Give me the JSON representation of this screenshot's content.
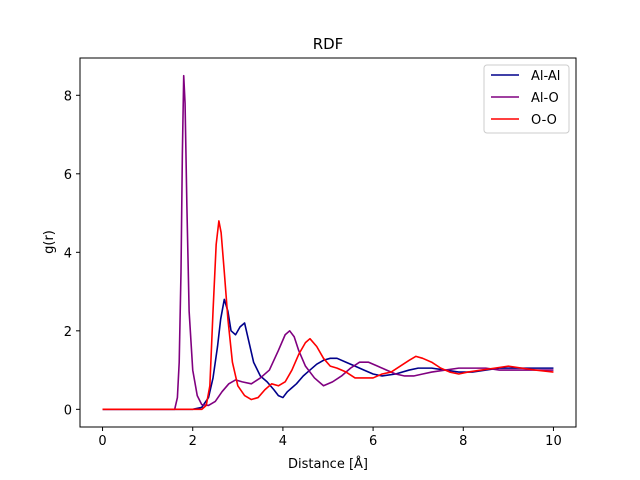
{
  "chart_data": {
    "type": "line",
    "title": "RDF",
    "xlabel": "Distance [Å]",
    "ylabel": "g(r)",
    "xlim": [
      -0.5,
      10.5
    ],
    "ylim": [
      -0.45,
      8.95
    ],
    "xticks": [
      0,
      2,
      4,
      6,
      8,
      10
    ],
    "yticks": [
      0,
      2,
      4,
      6,
      8
    ],
    "grid": false,
    "legend_position": "top-right",
    "series": [
      {
        "name": "Al-Al",
        "color": "#00008b",
        "x": [
          0,
          2.0,
          2.2,
          2.35,
          2.45,
          2.55,
          2.62,
          2.7,
          2.78,
          2.85,
          2.95,
          3.05,
          3.15,
          3.25,
          3.35,
          3.5,
          3.65,
          3.8,
          3.9,
          4.0,
          4.1,
          4.2,
          4.3,
          4.45,
          4.6,
          4.75,
          4.9,
          5.05,
          5.2,
          5.4,
          5.6,
          5.8,
          6.0,
          6.2,
          6.5,
          6.8,
          7.0,
          7.3,
          7.6,
          7.9,
          8.2,
          8.5,
          8.8,
          9.1,
          9.4,
          9.7,
          10.0
        ],
        "y": [
          0,
          0,
          0.05,
          0.3,
          0.8,
          1.6,
          2.3,
          2.8,
          2.5,
          2.0,
          1.9,
          2.1,
          2.2,
          1.7,
          1.2,
          0.85,
          0.7,
          0.5,
          0.35,
          0.3,
          0.45,
          0.55,
          0.65,
          0.85,
          1.0,
          1.15,
          1.25,
          1.3,
          1.3,
          1.2,
          1.1,
          1.0,
          0.9,
          0.85,
          0.9,
          1.0,
          1.05,
          1.05,
          1.0,
          0.95,
          0.95,
          1.0,
          1.05,
          1.05,
          1.05,
          1.05,
          1.05
        ]
      },
      {
        "name": "Al-O",
        "color": "#800080",
        "x": [
          0,
          1.6,
          1.66,
          1.7,
          1.74,
          1.77,
          1.8,
          1.83,
          1.87,
          1.92,
          2.0,
          2.1,
          2.2,
          2.35,
          2.5,
          2.65,
          2.8,
          2.95,
          3.1,
          3.3,
          3.5,
          3.7,
          3.9,
          4.05,
          4.15,
          4.25,
          4.35,
          4.5,
          4.7,
          4.9,
          5.1,
          5.3,
          5.5,
          5.7,
          5.9,
          6.1,
          6.3,
          6.5,
          6.7,
          6.9,
          7.1,
          7.3,
          7.6,
          7.9,
          8.2,
          8.5,
          8.8,
          9.1,
          9.4,
          9.7,
          10.0
        ],
        "y": [
          0,
          0,
          0.3,
          1.2,
          3.5,
          6.5,
          8.5,
          7.8,
          5.2,
          2.5,
          1.0,
          0.35,
          0.12,
          0.1,
          0.2,
          0.45,
          0.65,
          0.75,
          0.7,
          0.65,
          0.8,
          1.0,
          1.5,
          1.9,
          2.0,
          1.85,
          1.5,
          1.1,
          0.8,
          0.6,
          0.7,
          0.85,
          1.05,
          1.2,
          1.2,
          1.1,
          1.0,
          0.9,
          0.85,
          0.85,
          0.9,
          0.95,
          1.0,
          1.05,
          1.05,
          1.05,
          1.0,
          1.0,
          1.0,
          1.0,
          1.0
        ]
      },
      {
        "name": "O-O",
        "color": "#ff0000",
        "x": [
          0,
          2.2,
          2.3,
          2.38,
          2.45,
          2.52,
          2.58,
          2.63,
          2.7,
          2.78,
          2.88,
          3.0,
          3.15,
          3.3,
          3.45,
          3.6,
          3.75,
          3.9,
          4.05,
          4.2,
          4.35,
          4.5,
          4.6,
          4.75,
          4.9,
          5.05,
          5.2,
          5.4,
          5.6,
          5.8,
          6.0,
          6.2,
          6.4,
          6.6,
          6.8,
          6.95,
          7.1,
          7.3,
          7.5,
          7.7,
          7.9,
          8.1,
          8.4,
          8.7,
          9.0,
          9.3,
          9.6,
          10.0
        ],
        "y": [
          0,
          0,
          0.1,
          0.6,
          2.5,
          4.2,
          4.8,
          4.5,
          3.5,
          2.3,
          1.2,
          0.6,
          0.35,
          0.25,
          0.3,
          0.5,
          0.65,
          0.6,
          0.7,
          1.0,
          1.4,
          1.7,
          1.8,
          1.6,
          1.3,
          1.1,
          1.05,
          0.95,
          0.8,
          0.8,
          0.8,
          0.9,
          0.95,
          1.1,
          1.25,
          1.35,
          1.3,
          1.2,
          1.05,
          0.95,
          0.9,
          0.95,
          1.0,
          1.05,
          1.1,
          1.05,
          1.0,
          0.95
        ]
      }
    ]
  }
}
